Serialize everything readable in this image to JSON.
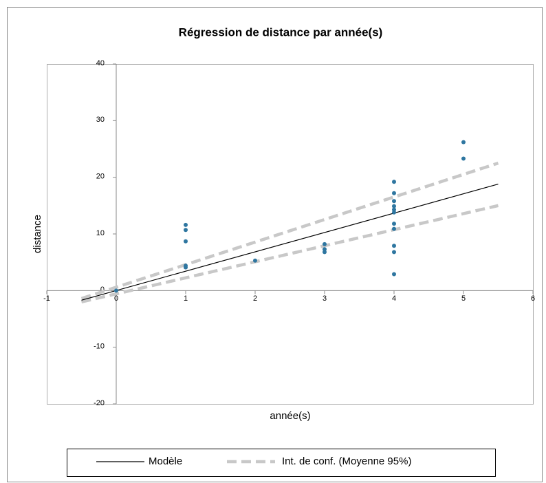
{
  "chart_data": {
    "type": "scatter",
    "title": "Régression de distance par année(s)",
    "xlabel": "année(s)",
    "ylabel": "distance",
    "xlim": [
      -1,
      6
    ],
    "ylim": [
      -20,
      40
    ],
    "xticks": [
      -1,
      0,
      1,
      2,
      3,
      4,
      5,
      6
    ],
    "yticks": [
      -20,
      -10,
      0,
      10,
      20,
      30,
      40
    ],
    "grid": false,
    "legend": "bottom",
    "points": {
      "color": "#2e76a0",
      "x": [
        0,
        1,
        1,
        1,
        1,
        1,
        2,
        3,
        3,
        3,
        4,
        4,
        4,
        4,
        4,
        4,
        4,
        4,
        4,
        4,
        4,
        5,
        5
      ],
      "values": [
        0,
        11.6,
        10.7,
        8.7,
        4.4,
        4.1,
        5.3,
        8.2,
        7.3,
        6.8,
        19.2,
        17.2,
        15.8,
        14.9,
        14.3,
        13.8,
        11.8,
        10.9,
        7.9,
        6.8,
        2.9,
        26.2,
        23.3
      ]
    },
    "model": {
      "name": "Modèle",
      "color": "#000000",
      "x": [
        -0.5,
        5.5
      ],
      "values": [
        -1.7,
        18.8
      ]
    },
    "confidence": {
      "name": "Int. de conf. (Moyenne 95%)",
      "color": "#c8c8c8",
      "x": [
        -0.5,
        5.5
      ],
      "upper": [
        -1.4,
        22.5
      ],
      "lower": [
        -2.0,
        15.0
      ]
    }
  }
}
